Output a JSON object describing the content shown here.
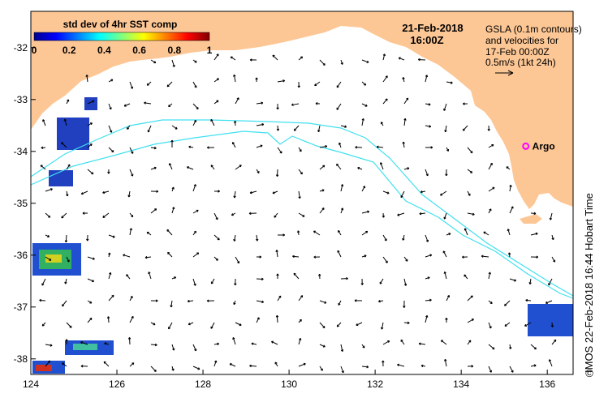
{
  "colorbar": {
    "title": "std dev of 4hr SST comp",
    "ticks": [
      "0",
      "0.2",
      "0.4",
      "0.6",
      "0.8",
      "1"
    ],
    "tick_values": [
      0,
      0.2,
      0.4,
      0.6,
      0.8,
      1
    ]
  },
  "date_label": "21-Feb-2018",
  "time_label": "16:00Z",
  "legend_lines": [
    "GSLA (0.1m contours)",
    "and velocities for",
    "17-Feb 00:00Z",
    "0.5m/s (1kt 24h)"
  ],
  "argo_label": "Argo",
  "credit": "IMOS 22-Feb-2018 16:44 Hobart Time",
  "copyright_symbol": "©",
  "axes": {
    "lon_ticks": [
      124,
      126,
      128,
      130,
      132,
      134,
      136
    ],
    "lat_ticks": [
      -32,
      -33,
      -34,
      -35,
      -36,
      -37,
      -38
    ],
    "lon_labels": [
      "124",
      "126",
      "128",
      "130",
      "132",
      "134",
      "136"
    ],
    "lat_labels": [
      "-32",
      "-33",
      "-34",
      "-35",
      "-36",
      "-37",
      "-38"
    ],
    "lon_range": [
      124,
      136.6
    ],
    "lat_range": [
      -38.3,
      -31.3
    ]
  },
  "colors": {
    "land": "#fdc795",
    "contour": "#40e0f0",
    "arrow": "#000000",
    "argo": "#ff00ff"
  },
  "argo_position": {
    "lon": 135.5,
    "lat": -33.9
  }
}
